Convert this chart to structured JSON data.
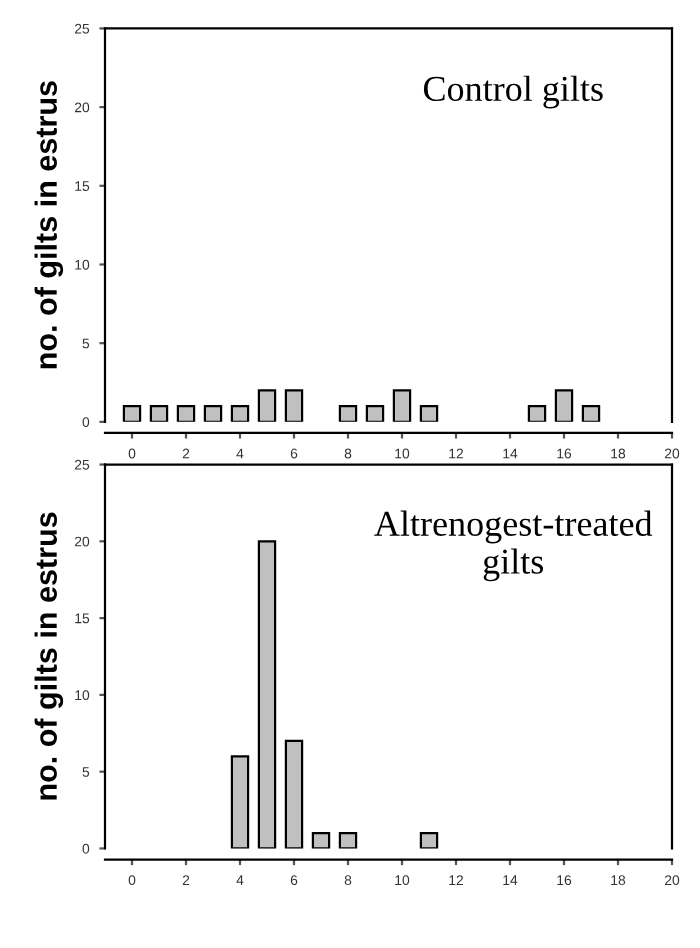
{
  "chart_data": [
    {
      "type": "bar",
      "title": "Control gilts",
      "ylabel": "no. of gilts in estrus",
      "x": [
        0,
        1,
        2,
        3,
        4,
        5,
        6,
        8,
        9,
        10,
        11,
        15,
        16,
        17
      ],
      "series": [
        {
          "color": "#c0c0c0",
          "values": [
            1,
            1,
            1,
            1,
            1,
            2,
            2,
            1,
            1,
            2,
            1,
            1,
            2,
            1
          ]
        }
      ],
      "xlim": [
        -1,
        20
      ],
      "ylim": [
        0,
        25
      ],
      "xticks": [
        0,
        2,
        4,
        6,
        8,
        10,
        12,
        14,
        16,
        18,
        20
      ],
      "yticks": [
        0,
        5,
        10,
        15,
        20,
        25
      ],
      "grid": false,
      "legend": false
    },
    {
      "type": "bar",
      "title": "Altrenogest-treated\ngilts",
      "ylabel": "no. of gilts in estrus",
      "x": [
        4,
        5,
        6,
        7,
        8,
        11
      ],
      "series": [
        {
          "color": "#c0c0c0",
          "values": [
            6,
            20,
            7,
            1,
            1,
            1
          ]
        }
      ],
      "xlim": [
        -1,
        20
      ],
      "ylim": [
        0,
        25
      ],
      "xticks": [
        0,
        2,
        4,
        6,
        8,
        10,
        12,
        14,
        16,
        18,
        20
      ],
      "yticks": [
        0,
        5,
        10,
        15,
        20,
        25
      ],
      "grid": false,
      "legend": false
    }
  ]
}
